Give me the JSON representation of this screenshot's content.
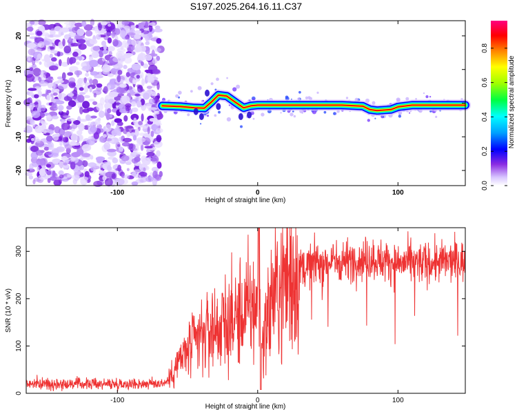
{
  "title": "S197.2025.264.16.11.C37",
  "chart_data": [
    {
      "type": "heatmap",
      "name": "spectrogram",
      "xlabel": "Height of straight line (km)",
      "ylabel": "Frequency (Hz)",
      "xlim": [
        -165,
        148
      ],
      "ylim": [
        -24.5,
        24.5
      ],
      "x_ticks": [
        -100,
        0,
        100
      ],
      "y_ticks": [
        -20,
        -10,
        0,
        10,
        20
      ],
      "noise_region_x": [
        -165,
        -68
      ],
      "signal_ridge": {
        "x": [
          -68,
          -55,
          -45,
          -38,
          -33,
          -28,
          -22,
          -16,
          -10,
          -5,
          0,
          20,
          40,
          60,
          75,
          80,
          85,
          95,
          100,
          110,
          130,
          148
        ],
        "freq": [
          -0.8,
          -1.0,
          -1.4,
          -1.5,
          0.3,
          2.4,
          2.1,
          0.3,
          -1.4,
          -0.8,
          -0.6,
          -0.6,
          -0.6,
          -0.6,
          -0.9,
          -1.9,
          -2.2,
          -1.9,
          -1.1,
          -0.6,
          -0.6,
          -0.6
        ]
      },
      "colorbar": {
        "label": "Normalized spectral amplitude",
        "ticks": [
          "0.0",
          "0.2",
          "0.4",
          "0.6",
          "0.8"
        ],
        "range": [
          0,
          0.96
        ]
      }
    },
    {
      "type": "line",
      "name": "snr",
      "xlabel": "Height of straight line (km)",
      "ylabel": "SNR (10 * v/v)",
      "xlim": [
        -165,
        148
      ],
      "ylim": [
        0,
        350
      ],
      "x_ticks": [
        -100,
        0,
        100
      ],
      "y_ticks": [
        0,
        100,
        200,
        300
      ],
      "color": "#ee3333",
      "series": [
        {
          "name": "SNR",
          "x": [
            -165,
            -140,
            -120,
            -100,
            -80,
            -66,
            -62,
            -58,
            -50,
            -40,
            -30,
            -20,
            -10,
            -5,
            0,
            1,
            2,
            10,
            20,
            30,
            40,
            60,
            80,
            100,
            120,
            148
          ],
          "y": [
            20,
            20,
            20,
            20,
            20,
            22,
            35,
            60,
            90,
            120,
            140,
            150,
            170,
            180,
            185,
            350,
            90,
            200,
            240,
            260,
            275,
            280,
            285,
            275,
            275,
            280
          ]
        }
      ]
    }
  ]
}
